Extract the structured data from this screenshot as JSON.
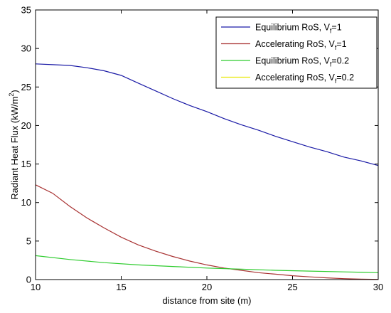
{
  "chart_data": {
    "type": "line",
    "title": "",
    "xlabel": "distance from site (m)",
    "ylabel": "Radiant Heat Flux (kW/m",
    "ylabel_superscript": "2",
    "ylabel_suffix": ")",
    "xlim": [
      10,
      30
    ],
    "ylim": [
      0,
      35
    ],
    "xticks": [
      "10",
      "15",
      "20",
      "25",
      "30"
    ],
    "yticks": [
      "0",
      "5",
      "10",
      "15",
      "20",
      "25",
      "30",
      "35"
    ],
    "grid": false,
    "legend_position": "top-right",
    "series": [
      {
        "name": "Equilibrium RoS, V",
        "subscript": "f",
        "suffix": "=1",
        "color": "#1a1aa6",
        "x": [
          10,
          11,
          12,
          13,
          14,
          15,
          16,
          17,
          18,
          19,
          20,
          21,
          22,
          23,
          24,
          25,
          26,
          27,
          28,
          29,
          30
        ],
        "y": [
          28.0,
          27.9,
          27.8,
          27.5,
          27.1,
          26.5,
          25.5,
          24.5,
          23.5,
          22.6,
          21.8,
          20.9,
          20.1,
          19.4,
          18.6,
          17.9,
          17.2,
          16.6,
          15.9,
          15.4,
          14.8
        ]
      },
      {
        "name": "Accelerating RoS, V",
        "subscript": "f",
        "suffix": "=1",
        "color": "#a83232",
        "x": [
          10,
          11,
          12,
          13,
          14,
          15,
          16,
          17,
          18,
          19,
          20,
          21,
          22,
          23,
          24,
          25,
          26,
          27,
          28,
          29,
          30
        ],
        "y": [
          12.3,
          11.2,
          9.5,
          8.0,
          6.7,
          5.5,
          4.5,
          3.7,
          3.0,
          2.4,
          1.9,
          1.5,
          1.2,
          0.9,
          0.7,
          0.5,
          0.35,
          0.22,
          0.12,
          0.06,
          0.03
        ]
      },
      {
        "name": "Equilibrium RoS, V",
        "subscript": "f",
        "suffix": "=0.2",
        "color": "#2fcc2f",
        "x": [
          10,
          12,
          14,
          16,
          18,
          20,
          22,
          24,
          26,
          28,
          30
        ],
        "y": [
          3.1,
          2.6,
          2.2,
          1.9,
          1.7,
          1.5,
          1.35,
          1.2,
          1.1,
          1.0,
          0.9
        ]
      },
      {
        "name": "Accelerating RoS, V",
        "subscript": "f",
        "suffix": "=0.2",
        "color": "#e8e800",
        "x": [],
        "y": []
      }
    ]
  }
}
